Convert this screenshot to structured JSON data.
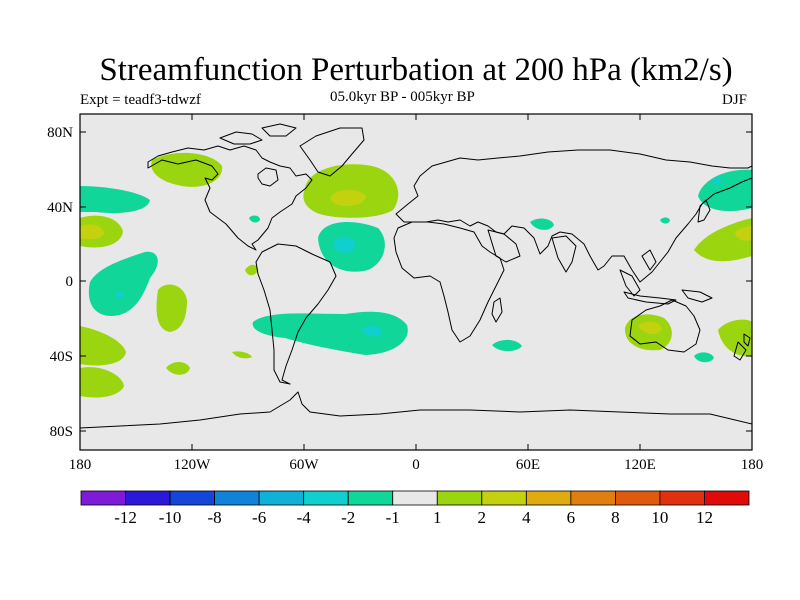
{
  "figure": {
    "title": "Streamfunction Perturbation at 200 hPa (km2/s)",
    "left_label": "Expt = teadf3-tdwzf",
    "center_label": "05.0kyr BP - 005kyr BP",
    "right_label": "DJF"
  },
  "axes": {
    "lat_labels": [
      "80N",
      "40N",
      "0",
      "40S",
      "80S"
    ],
    "lon_labels": [
      "180",
      "120W",
      "60W",
      "0",
      "60E",
      "120E",
      "180"
    ]
  },
  "colorbar": {
    "colors": [
      "#7f1ad9",
      "#2b18d9",
      "#1447d9",
      "#0f82d9",
      "#0fb1d9",
      "#0fcfcf",
      "#10d69a",
      "#e8e8e8",
      "#9ad50f",
      "#c4d10e",
      "#e0ab0f",
      "#e07f0f",
      "#e05a0e",
      "#e0300e",
      "#e00a0a"
    ],
    "labels": [
      "-12",
      "-10",
      "-8",
      "-6",
      "-4",
      "-2",
      "-1",
      "1",
      "2",
      "4",
      "6",
      "8",
      "10",
      "12"
    ]
  },
  "chart_data": {
    "type": "heatmap",
    "title": "Streamfunction Perturbation at 200 hPa (km2/s)",
    "subtitle": "05.0kyr BP - 005kyr BP",
    "experiment": "Expt = teadf3-tdwzf",
    "season": "DJF",
    "xlim": [
      -180,
      180
    ],
    "ylim": [
      -90,
      90
    ],
    "contour_levels": [
      -12,
      -10,
      -8,
      -6,
      -4,
      -2,
      -1,
      1,
      2,
      4,
      6,
      8,
      10,
      12
    ],
    "anomalies": [
      {
        "lon": -137,
        "lat": 57,
        "value": 1.5
      },
      {
        "lon": -35,
        "lat": 46,
        "value": 3
      },
      {
        "lon": -165,
        "lat": 47,
        "value": -1.5
      },
      {
        "lon": -172,
        "lat": 27,
        "value": 3
      },
      {
        "lon": -164,
        "lat": -8,
        "value": -2
      },
      {
        "lon": -40,
        "lat": 20,
        "value": -2.5
      },
      {
        "lon": -135,
        "lat": -17,
        "value": 1.5
      },
      {
        "lon": -170,
        "lat": -50,
        "value": 1.5
      },
      {
        "lon": -65,
        "lat": -25,
        "value": -1.5
      },
      {
        "lon": -25,
        "lat": -27,
        "value": -2.5
      },
      {
        "lon": 68,
        "lat": 30,
        "value": -1.5
      },
      {
        "lon": 50,
        "lat": -35,
        "value": -1.5
      },
      {
        "lon": 130,
        "lat": -25,
        "value": 2.5
      },
      {
        "lon": 165,
        "lat": 50,
        "value": -1.5
      },
      {
        "lon": 175,
        "lat": 25,
        "value": 2
      },
      {
        "lon": 172,
        "lat": -37,
        "value": 1.5
      },
      {
        "lon": 157,
        "lat": -42,
        "value": -1.5
      }
    ]
  }
}
